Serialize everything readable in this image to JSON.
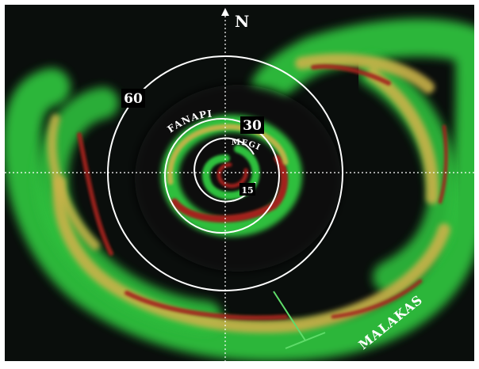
{
  "north_label": "N",
  "ring_labels": {
    "outer": "60",
    "middle": "30",
    "inner": "15"
  },
  "storm_names": {
    "outer_arc": "FANAPI",
    "middle_arc": "MEGI",
    "bottom_right": "MALAKAS"
  },
  "colors": {
    "background": "#0a0e0c",
    "rain_light": "#2fbf3e",
    "rain_medium": "#c9b24a",
    "rain_heavy": "#a3201b",
    "rings": "#ffffff",
    "label_box": "#000000",
    "label_text": "#ffffff"
  }
}
